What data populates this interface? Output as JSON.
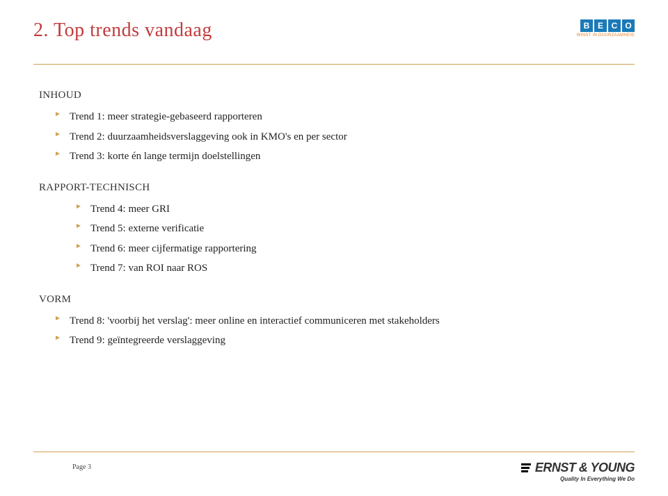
{
  "meta": {
    "title_font_family": "Georgia, 'Times New Roman', serif",
    "accent_color": "#d0a050",
    "title_color": "#c23b3b",
    "bullet_color": "#d0a050",
    "text_color": "#222222",
    "background_color": "#ffffff"
  },
  "header": {
    "title": "2. Top trends vandaag",
    "logo": {
      "letters": [
        "B",
        "E",
        "C",
        "O"
      ],
      "box_color": "#1a7ab8",
      "tagline": "WINST IN DUURZAAMHEID"
    }
  },
  "sections": [
    {
      "label": "INHOUD",
      "indent": false,
      "items": [
        "Trend 1: meer strategie-gebaseerd rapporteren",
        "Trend 2: duurzaamheidsverslaggeving ook in KMO's en per sector",
        "Trend 3: korte én lange termijn doelstellingen"
      ]
    },
    {
      "label": "RAPPORT-TECHNISCH",
      "indent": true,
      "items": [
        "Trend 4: meer GRI",
        "Trend 5: externe verificatie",
        "Trend 6: meer cijfermatige rapportering",
        "Trend 7: van ROI naar ROS"
      ]
    },
    {
      "label": "VORM",
      "indent": false,
      "items": [
        "Trend 8: 'voorbij het verslag': meer online en interactief communiceren met stakeholders",
        "Trend 9: geïntegreerde verslaggeving"
      ]
    }
  ],
  "footer": {
    "page_label": "Page 3",
    "ey": {
      "name": "ERNST & YOUNG",
      "tagline": "Quality In Everything We Do"
    }
  }
}
